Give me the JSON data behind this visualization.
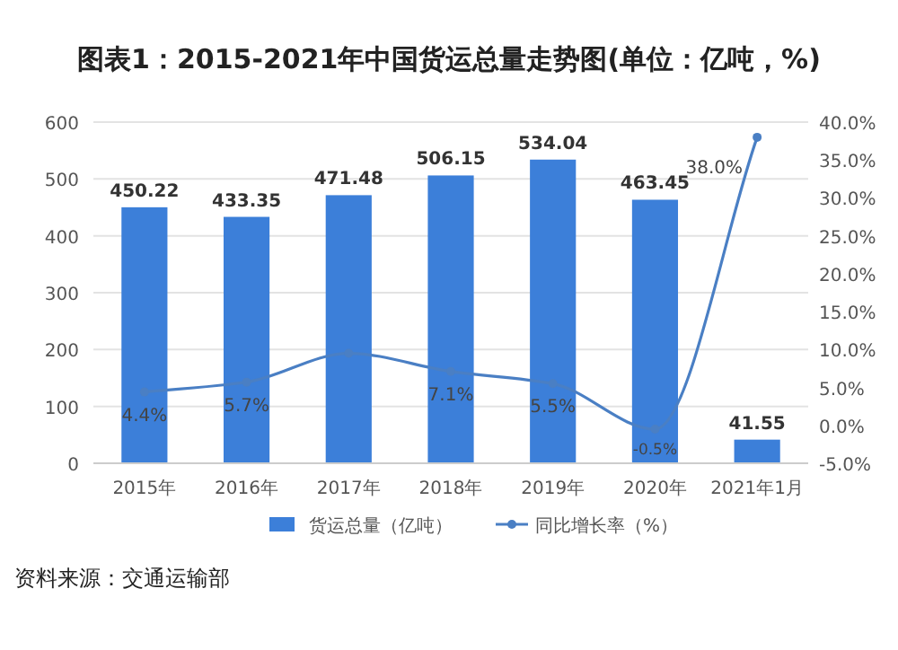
{
  "chart_data": {
    "type": "bar",
    "title": "图表1：2015-2021年中国货运总量走势图(单位：亿吨，%)",
    "categories": [
      "2015年",
      "2016年",
      "2017年",
      "2018年",
      "2019年",
      "2020年",
      "2021年1月"
    ],
    "series": [
      {
        "name": "货运总量（亿吨）",
        "color": "#3c7fd9",
        "values": [
          450.22,
          433.35,
          471.48,
          506.15,
          534.04,
          463.45,
          41.55
        ],
        "value_labels": [
          "450.22",
          "433.35",
          "471.48",
          "506.15",
          "534.04",
          "463.45",
          "41.55"
        ]
      },
      {
        "name": "同比增长率（%）",
        "type": "line",
        "axis": "y2",
        "color": "#4a7fc4",
        "marker": "circle",
        "values": [
          4.4,
          5.7,
          9.5,
          7.1,
          5.5,
          -0.5,
          38.0
        ],
        "value_labels": [
          "4.4%",
          "5.7%",
          null,
          "7.1%",
          "5.5%",
          "-0.5%",
          "38.0%"
        ]
      }
    ],
    "ylim": [
      0,
      600
    ],
    "yticks": [
      0,
      100,
      200,
      300,
      400,
      500,
      600
    ],
    "y2lim": [
      -5,
      40
    ],
    "y2ticks": [
      {
        "value": -5,
        "label": "-5.0%"
      },
      {
        "value": 0,
        "label": "0.0%"
      },
      {
        "value": 5,
        "label": "5.0%"
      },
      {
        "value": 10,
        "label": "10.0%"
      },
      {
        "value": 15,
        "label": "15.0%"
      },
      {
        "value": 20,
        "label": "20.0%"
      },
      {
        "value": 25,
        "label": "25.0%"
      },
      {
        "value": 30,
        "label": "30.0%"
      },
      {
        "value": 35,
        "label": "35.0%"
      },
      {
        "value": 40,
        "label": "40.0%"
      }
    ],
    "grid": "y",
    "legend": "bottom",
    "annotations": [
      "资料来源：交通运输部"
    ]
  }
}
